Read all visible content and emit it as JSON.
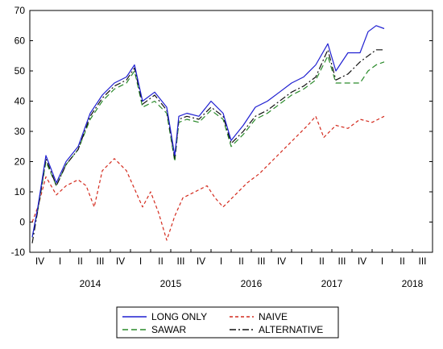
{
  "chart_data": {
    "type": "line",
    "title": "",
    "xlabel": "",
    "ylabel": "",
    "ylim": [
      -10,
      70
    ],
    "yticks": [
      -10,
      0,
      10,
      20,
      30,
      40,
      50,
      60,
      70
    ],
    "ytick_labels": [
      "-10",
      "0",
      "10",
      "20",
      "30",
      "40",
      "50",
      "60",
      "70"
    ],
    "x_quarter_ticks": [
      "IV",
      "I",
      "II",
      "III",
      "IV",
      "I",
      "II",
      "III",
      "IV",
      "I",
      "II",
      "III",
      "IV",
      "I",
      "II",
      "III",
      "IV",
      "I",
      "II",
      "III"
    ],
    "x_year_labels": [
      "2014",
      "2015",
      "2016",
      "2017",
      "2018"
    ],
    "x_domain": [
      2013.75,
      2018.75
    ],
    "grid": false,
    "legend_placement": "bottom-center",
    "series": [
      {
        "name": "LONG ONLY",
        "color": "#1f1fd1",
        "dash": "solid",
        "points": [
          [
            2013.78,
            -5
          ],
          [
            2013.85,
            5
          ],
          [
            2013.95,
            22
          ],
          [
            2014.08,
            13
          ],
          [
            2014.2,
            20
          ],
          [
            2014.35,
            25
          ],
          [
            2014.5,
            36
          ],
          [
            2014.65,
            42
          ],
          [
            2014.8,
            46
          ],
          [
            2014.95,
            48
          ],
          [
            2015.05,
            52
          ],
          [
            2015.15,
            40
          ],
          [
            2015.3,
            43
          ],
          [
            2015.45,
            38
          ],
          [
            2015.55,
            22
          ],
          [
            2015.6,
            35
          ],
          [
            2015.7,
            36
          ],
          [
            2015.85,
            35
          ],
          [
            2016.0,
            40
          ],
          [
            2016.15,
            36
          ],
          [
            2016.25,
            27
          ],
          [
            2016.4,
            32
          ],
          [
            2016.55,
            38
          ],
          [
            2016.7,
            40
          ],
          [
            2016.85,
            43
          ],
          [
            2017.0,
            46
          ],
          [
            2017.15,
            48
          ],
          [
            2017.3,
            52
          ],
          [
            2017.45,
            59
          ],
          [
            2017.55,
            50
          ],
          [
            2017.7,
            56
          ],
          [
            2017.85,
            56
          ],
          [
            2017.95,
            63
          ],
          [
            2018.05,
            65
          ],
          [
            2018.15,
            64
          ]
        ]
      },
      {
        "name": "NAIVE",
        "color": "#d42b1e",
        "dash": "4,3",
        "points": [
          [
            2013.78,
            0
          ],
          [
            2013.85,
            5
          ],
          [
            2013.95,
            15
          ],
          [
            2014.08,
            9
          ],
          [
            2014.2,
            12
          ],
          [
            2014.35,
            14
          ],
          [
            2014.45,
            12
          ],
          [
            2014.55,
            5
          ],
          [
            2014.65,
            17
          ],
          [
            2014.8,
            21
          ],
          [
            2014.95,
            17
          ],
          [
            2015.05,
            11
          ],
          [
            2015.15,
            5
          ],
          [
            2015.25,
            10
          ],
          [
            2015.35,
            3
          ],
          [
            2015.45,
            -6
          ],
          [
            2015.55,
            2
          ],
          [
            2015.65,
            8
          ],
          [
            2015.8,
            10
          ],
          [
            2015.95,
            12
          ],
          [
            2016.05,
            8
          ],
          [
            2016.15,
            5
          ],
          [
            2016.3,
            9
          ],
          [
            2016.45,
            13
          ],
          [
            2016.6,
            16
          ],
          [
            2016.75,
            20
          ],
          [
            2016.9,
            24
          ],
          [
            2017.05,
            28
          ],
          [
            2017.2,
            32
          ],
          [
            2017.3,
            35
          ],
          [
            2017.4,
            28
          ],
          [
            2017.55,
            32
          ],
          [
            2017.7,
            31
          ],
          [
            2017.85,
            34
          ],
          [
            2018.0,
            33
          ],
          [
            2018.15,
            35
          ]
        ]
      },
      {
        "name": "SAWAR",
        "color": "#2a8a2a",
        "dash": "7,4",
        "points": [
          [
            2013.78,
            -5
          ],
          [
            2013.85,
            4
          ],
          [
            2013.95,
            20
          ],
          [
            2014.08,
            12
          ],
          [
            2014.2,
            19
          ],
          [
            2014.35,
            24
          ],
          [
            2014.5,
            34
          ],
          [
            2014.65,
            40
          ],
          [
            2014.8,
            44
          ],
          [
            2014.95,
            46
          ],
          [
            2015.05,
            50
          ],
          [
            2015.15,
            38
          ],
          [
            2015.3,
            40
          ],
          [
            2015.45,
            36
          ],
          [
            2015.55,
            20
          ],
          [
            2015.6,
            33
          ],
          [
            2015.7,
            34
          ],
          [
            2015.85,
            33
          ],
          [
            2016.0,
            37
          ],
          [
            2016.15,
            34
          ],
          [
            2016.25,
            25
          ],
          [
            2016.4,
            29
          ],
          [
            2016.55,
            34
          ],
          [
            2016.7,
            36
          ],
          [
            2016.85,
            39
          ],
          [
            2017.0,
            42
          ],
          [
            2017.15,
            44
          ],
          [
            2017.3,
            47
          ],
          [
            2017.45,
            55
          ],
          [
            2017.55,
            46
          ],
          [
            2017.7,
            46
          ],
          [
            2017.85,
            46
          ],
          [
            2017.95,
            50
          ],
          [
            2018.05,
            52
          ],
          [
            2018.15,
            53
          ]
        ]
      },
      {
        "name": "ALTERNATIVE",
        "color": "#111111",
        "dash": "8,3,2,3",
        "points": [
          [
            2013.78,
            -7
          ],
          [
            2013.85,
            4
          ],
          [
            2013.95,
            21
          ],
          [
            2014.08,
            12
          ],
          [
            2014.2,
            19
          ],
          [
            2014.35,
            24
          ],
          [
            2014.5,
            35
          ],
          [
            2014.65,
            41
          ],
          [
            2014.8,
            45
          ],
          [
            2014.95,
            47
          ],
          [
            2015.05,
            51
          ],
          [
            2015.15,
            39
          ],
          [
            2015.3,
            42
          ],
          [
            2015.45,
            37
          ],
          [
            2015.55,
            21
          ],
          [
            2015.6,
            34
          ],
          [
            2015.7,
            35
          ],
          [
            2015.85,
            34
          ],
          [
            2016.0,
            38
          ],
          [
            2016.15,
            35
          ],
          [
            2016.25,
            26
          ],
          [
            2016.4,
            30
          ],
          [
            2016.55,
            35
          ],
          [
            2016.7,
            37
          ],
          [
            2016.85,
            40
          ],
          [
            2017.0,
            43
          ],
          [
            2017.15,
            45
          ],
          [
            2017.3,
            48
          ],
          [
            2017.45,
            57
          ],
          [
            2017.55,
            47
          ],
          [
            2017.7,
            49
          ],
          [
            2017.85,
            53
          ],
          [
            2017.95,
            55
          ],
          [
            2018.05,
            57
          ],
          [
            2018.15,
            57
          ]
        ]
      }
    ]
  }
}
